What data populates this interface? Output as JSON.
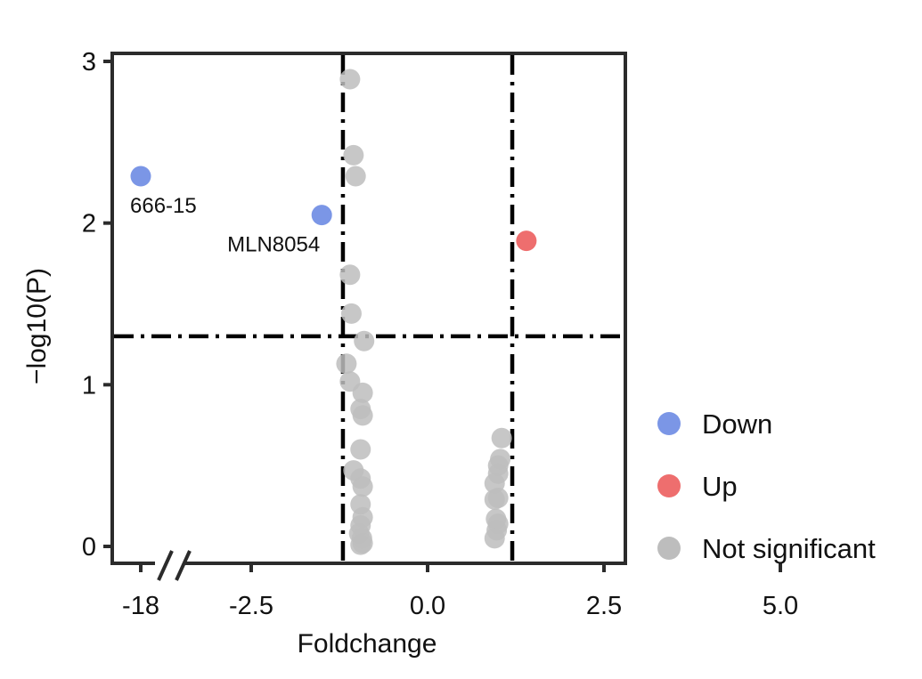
{
  "chart_data": {
    "type": "scatter",
    "title": "",
    "xlabel": "Foldchange",
    "ylabel": "−log10(P)",
    "x_tick_labels": [
      "-18",
      "-2.5",
      "0.0",
      "2.5",
      "5.0"
    ],
    "x_ticks": [
      -18,
      -2.5,
      0.0,
      2.5,
      5.0
    ],
    "x_axis_break_between": [
      -18,
      -2.5
    ],
    "ylim": [
      0,
      3
    ],
    "y_ticks": [
      0,
      1,
      2,
      3
    ],
    "threshold_lines": {
      "x": [
        -1.2,
        1.2
      ],
      "y": 1.3,
      "style": "dot-dash"
    },
    "legend": {
      "placement": "right"
    },
    "series": [
      {
        "name": "Down",
        "color": "#7b96e6",
        "points": [
          {
            "x": -18,
            "y": 2.29,
            "label": "666-15"
          },
          {
            "x": -1.5,
            "y": 2.05,
            "label": "MLN8054"
          }
        ]
      },
      {
        "name": "Up",
        "color": "#ee6e6e",
        "points": [
          {
            "x": 1.4,
            "y": 1.89
          }
        ]
      },
      {
        "name": "Not significant",
        "color": "#bdbdbd",
        "points": [
          {
            "x": -1.1,
            "y": 2.89
          },
          {
            "x": -1.05,
            "y": 2.42
          },
          {
            "x": -1.02,
            "y": 2.29
          },
          {
            "x": -1.1,
            "y": 1.68
          },
          {
            "x": -1.08,
            "y": 1.44
          },
          {
            "x": -0.9,
            "y": 1.27
          },
          {
            "x": -1.15,
            "y": 1.13
          },
          {
            "x": -1.1,
            "y": 1.02
          },
          {
            "x": -0.92,
            "y": 0.95
          },
          {
            "x": -0.95,
            "y": 0.85
          },
          {
            "x": -0.92,
            "y": 0.81
          },
          {
            "x": -0.95,
            "y": 0.6
          },
          {
            "x": -1.05,
            "y": 0.47
          },
          {
            "x": -0.95,
            "y": 0.42
          },
          {
            "x": -0.92,
            "y": 0.37
          },
          {
            "x": -0.95,
            "y": 0.26
          },
          {
            "x": -0.92,
            "y": 0.18
          },
          {
            "x": -0.95,
            "y": 0.13
          },
          {
            "x": -0.97,
            "y": 0.08
          },
          {
            "x": -0.93,
            "y": 0.05
          },
          {
            "x": -0.92,
            "y": 0.02
          },
          {
            "x": -0.95,
            "y": 0.01
          },
          {
            "x": 1.05,
            "y": 0.67
          },
          {
            "x": 1.03,
            "y": 0.54
          },
          {
            "x": 1.0,
            "y": 0.5
          },
          {
            "x": 1.0,
            "y": 0.45
          },
          {
            "x": 0.95,
            "y": 0.39
          },
          {
            "x": 1.0,
            "y": 0.3
          },
          {
            "x": 0.95,
            "y": 0.29
          },
          {
            "x": 0.97,
            "y": 0.17
          },
          {
            "x": 1.0,
            "y": 0.14
          },
          {
            "x": 0.98,
            "y": 0.1
          },
          {
            "x": 0.95,
            "y": 0.05
          }
        ]
      }
    ]
  }
}
